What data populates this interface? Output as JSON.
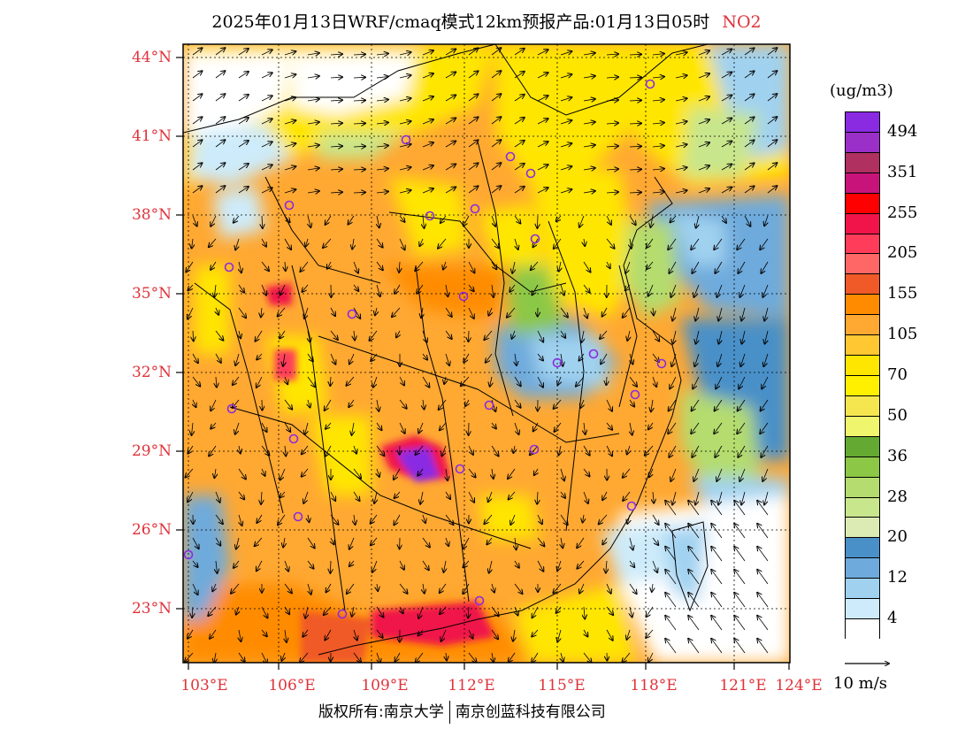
{
  "title": {
    "text": "2025年01月13日WRF/cmaq模式12km预报产品:01月13日05时",
    "species": "NO2"
  },
  "map": {
    "lat_labels": [
      "44°N",
      "41°N",
      "38°N",
      "35°N",
      "32°N",
      "29°N",
      "26°N",
      "23°N"
    ],
    "lon_labels": [
      "103°E",
      "106°E",
      "109°E",
      "112°E",
      "115°E",
      "118°E",
      "121°E",
      "124°E"
    ]
  },
  "legend": {
    "unit": "(ug/m3)",
    "colors": [
      "#8a2be2",
      "#9b30c8",
      "#b03060",
      "#c8147a",
      "#ff0000",
      "#f0144a",
      "#ff3c5a",
      "#ff6666",
      "#f05a28",
      "#ff8c00",
      "#ffa832",
      "#ffc832",
      "#ffe600",
      "#fff000",
      "#f5e650",
      "#f0f56e",
      "#64aa32",
      "#8cc846",
      "#b4dc6e",
      "#c8e68c",
      "#dceab4",
      "#4a90c8",
      "#6eaadc",
      "#a0d2f0",
      "#cdebfa",
      "#ffffff"
    ],
    "labels": [
      "494",
      "351",
      "255",
      "205",
      "155",
      "105",
      "70",
      "50",
      "36",
      "28",
      "20",
      "12",
      "4"
    ]
  },
  "wind": {
    "ref_label": "10 m/s"
  },
  "credit": {
    "left": "版权所有:南京大学",
    "right": "南京创蓝科技有限公司"
  }
}
